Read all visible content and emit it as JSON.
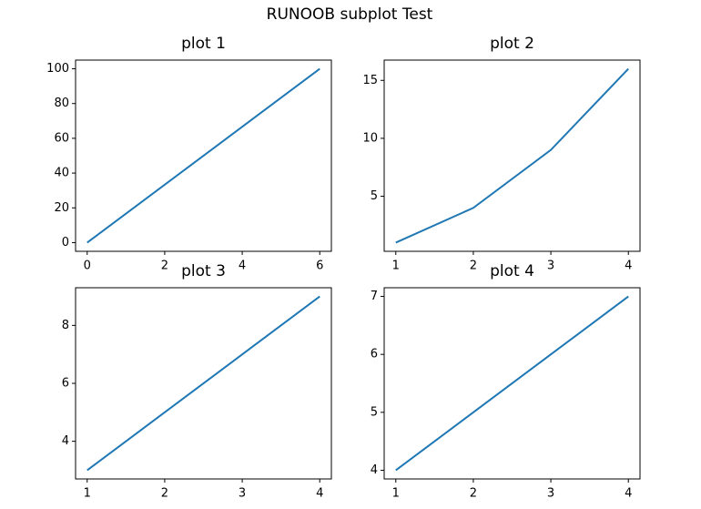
{
  "title": "RUNOOB subplot Test",
  "chart_data": [
    {
      "type": "line",
      "title": "plot 1",
      "x": [
        0,
        6
      ],
      "values": [
        0,
        100
      ],
      "color": "#1f77b4",
      "xlim": [
        -0.3,
        6.3
      ],
      "ylim": [
        -5,
        105
      ],
      "xticks": [
        0,
        2,
        4,
        6
      ],
      "yticks": [
        0,
        20,
        40,
        60,
        80,
        100
      ]
    },
    {
      "type": "line",
      "title": "plot 2",
      "x": [
        1,
        2,
        3,
        4
      ],
      "values": [
        1,
        4,
        9,
        16
      ],
      "color": "#1f77b4",
      "xlim": [
        0.85,
        4.15
      ],
      "ylim": [
        0.25,
        16.75
      ],
      "xticks": [
        1,
        2,
        3,
        4
      ],
      "yticks": [
        5,
        10,
        15
      ]
    },
    {
      "type": "line",
      "title": "plot 3",
      "x": [
        1,
        2,
        3,
        4
      ],
      "values": [
        3,
        5,
        7,
        9
      ],
      "color": "#1f77b4",
      "xlim": [
        0.85,
        4.15
      ],
      "ylim": [
        2.7,
        9.3
      ],
      "xticks": [
        1,
        2,
        3,
        4
      ],
      "yticks": [
        4,
        6,
        8
      ]
    },
    {
      "type": "line",
      "title": "plot 4",
      "x": [
        1,
        2,
        3,
        4
      ],
      "values": [
        4,
        5,
        6,
        7
      ],
      "color": "#1f77b4",
      "xlim": [
        0.85,
        4.15
      ],
      "ylim": [
        3.85,
        7.15
      ],
      "xticks": [
        1,
        2,
        3,
        4
      ],
      "yticks": [
        4,
        5,
        6,
        7
      ]
    }
  ]
}
